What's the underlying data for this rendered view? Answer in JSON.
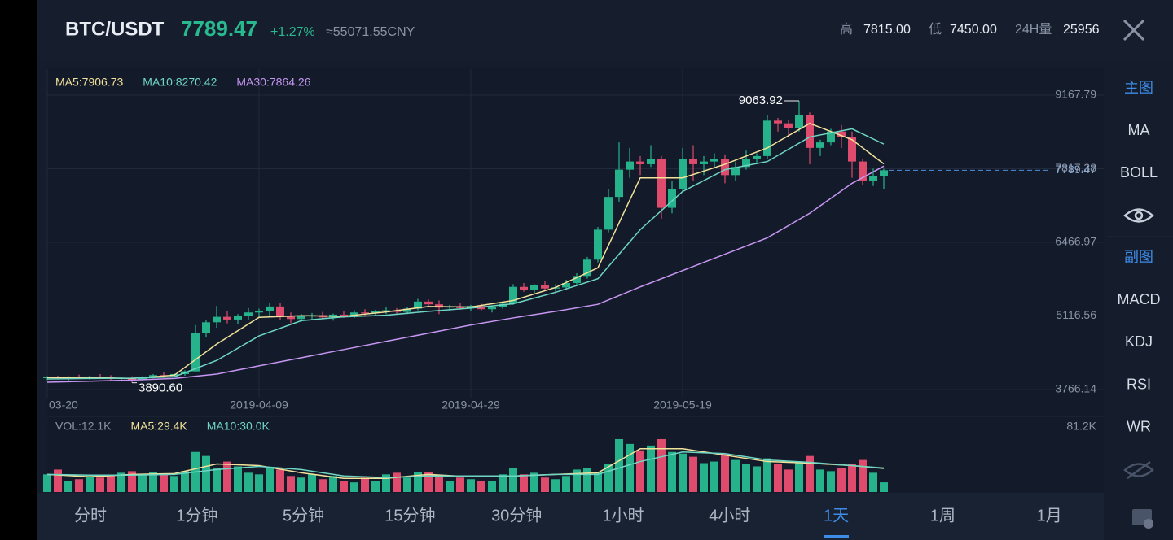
{
  "header": {
    "pair": "BTC/USDT",
    "price": "7789.47",
    "change": "+1.27%",
    "cny": "≈55071.55CNY",
    "high_label": "高",
    "high": "7815.00",
    "low_label": "低",
    "low": "7450.00",
    "vol_label": "24H量",
    "vol": "25956"
  },
  "sidebar": {
    "main_label": "主图",
    "main_items": [
      "MA",
      "BOLL"
    ],
    "sub_label": "副图",
    "sub_items": [
      "MACD",
      "KDJ",
      "RSI",
      "WR"
    ]
  },
  "tabs": {
    "items": [
      "分时",
      "1分钟",
      "5分钟",
      "15分钟",
      "30分钟",
      "1小时",
      "4小时",
      "1天",
      "1周",
      "1月"
    ],
    "active": 7
  },
  "chart_data": {
    "type": "candlestick",
    "up_color": "#26b38c",
    "down_color": "#de4b6d",
    "categories": [
      "03-20",
      null,
      null,
      null,
      null,
      null,
      null,
      null,
      null,
      null,
      null,
      null,
      null,
      null,
      null,
      null,
      null,
      null,
      null,
      null,
      "2019-04-09",
      null,
      null,
      null,
      null,
      null,
      null,
      null,
      null,
      null,
      null,
      null,
      null,
      null,
      null,
      null,
      null,
      null,
      null,
      null,
      "2019-04-29",
      null,
      null,
      null,
      null,
      null,
      null,
      null,
      null,
      null,
      null,
      null,
      null,
      null,
      null,
      null,
      null,
      null,
      null,
      null,
      "2019-05-19",
      null,
      null,
      null,
      null,
      null,
      null,
      null,
      null,
      null,
      null,
      null,
      null,
      null,
      null,
      null,
      null,
      null,
      null,
      null
    ],
    "candles": [
      [
        3980,
        4010,
        3940,
        3990
      ],
      [
        3990,
        4020,
        3950,
        3970
      ],
      [
        3970,
        4010,
        3930,
        4000
      ],
      [
        4000,
        4040,
        3960,
        3985
      ],
      [
        3985,
        4020,
        3950,
        4005
      ],
      [
        4005,
        4050,
        3970,
        3995
      ],
      [
        3995,
        4030,
        3940,
        3960
      ],
      [
        3960,
        4000,
        3920,
        3975
      ],
      [
        3975,
        4010,
        3890.6,
        3945
      ],
      [
        3945,
        4010,
        3930,
        3995
      ],
      [
        3995,
        4050,
        3970,
        4030
      ],
      [
        4030,
        4080,
        4000,
        4010
      ],
      [
        4010,
        4060,
        3990,
        4050
      ],
      [
        4050,
        4120,
        4020,
        4100
      ],
      [
        4100,
        4950,
        4080,
        4800
      ],
      [
        4800,
        5050,
        4720,
        5000
      ],
      [
        5000,
        5300,
        4900,
        5100
      ],
      [
        5100,
        5200,
        4980,
        5050
      ],
      [
        5050,
        5150,
        4960,
        5120
      ],
      [
        5120,
        5260,
        5050,
        5180
      ],
      [
        5180,
        5250,
        5080,
        5200
      ],
      [
        5200,
        5350,
        5100,
        5290
      ],
      [
        5290,
        5350,
        5050,
        5100
      ],
      [
        5100,
        5180,
        4980,
        5060
      ],
      [
        5060,
        5150,
        5010,
        5110
      ],
      [
        5110,
        5170,
        5050,
        5130
      ],
      [
        5130,
        5190,
        5060,
        5090
      ],
      [
        5090,
        5160,
        5030,
        5140
      ],
      [
        5140,
        5200,
        5080,
        5110
      ],
      [
        5110,
        5220,
        5080,
        5180
      ],
      [
        5180,
        5240,
        5120,
        5170
      ],
      [
        5170,
        5230,
        5130,
        5200
      ],
      [
        5200,
        5280,
        5150,
        5220
      ],
      [
        5220,
        5260,
        5160,
        5190
      ],
      [
        5190,
        5280,
        5150,
        5250
      ],
      [
        5250,
        5430,
        5220,
        5380
      ],
      [
        5380,
        5420,
        5280,
        5330
      ],
      [
        5330,
        5400,
        5150,
        5270
      ],
      [
        5270,
        5320,
        5200,
        5290
      ],
      [
        5290,
        5350,
        5230,
        5260
      ],
      [
        5260,
        5320,
        5210,
        5300
      ],
      [
        5300,
        5340,
        5220,
        5240
      ],
      [
        5240,
        5300,
        5180,
        5280
      ],
      [
        5280,
        5380,
        5250,
        5340
      ],
      [
        5340,
        5700,
        5320,
        5650
      ],
      [
        5650,
        5720,
        5560,
        5600
      ],
      [
        5600,
        5700,
        5540,
        5680
      ],
      [
        5680,
        5750,
        5580,
        5620
      ],
      [
        5620,
        5700,
        5560,
        5640
      ],
      [
        5640,
        5780,
        5600,
        5720
      ],
      [
        5720,
        5900,
        5690,
        5850
      ],
      [
        5850,
        6200,
        5800,
        6150
      ],
      [
        6150,
        6750,
        6100,
        6700
      ],
      [
        6700,
        7450,
        6650,
        7300
      ],
      [
        7300,
        8300,
        7200,
        7800
      ],
      [
        7800,
        8200,
        7650,
        7950
      ],
      [
        7950,
        8050,
        7700,
        7900
      ],
      [
        7900,
        8250,
        7850,
        8000
      ],
      [
        8000,
        8050,
        6900,
        7100
      ],
      [
        7100,
        7600,
        7000,
        7450
      ],
      [
        7450,
        8200,
        7400,
        8000
      ],
      [
        8000,
        8250,
        7600,
        7900
      ],
      [
        7900,
        8050,
        7700,
        7950
      ],
      [
        7950,
        8100,
        7850,
        7990
      ],
      [
        7990,
        8080,
        7550,
        7700
      ],
      [
        7700,
        7950,
        7600,
        7850
      ],
      [
        7850,
        8150,
        7800,
        8000
      ],
      [
        8000,
        8100,
        7900,
        8050
      ],
      [
        8050,
        8800,
        8000,
        8700
      ],
      [
        8700,
        8750,
        8500,
        8650
      ],
      [
        8650,
        8720,
        8400,
        8560
      ],
      [
        8560,
        9063.92,
        8500,
        8800
      ],
      [
        8800,
        8850,
        7900,
        8200
      ],
      [
        8200,
        8350,
        8050,
        8300
      ],
      [
        8300,
        8550,
        8250,
        8500
      ],
      [
        8500,
        8620,
        8200,
        8400
      ],
      [
        8400,
        8500,
        7650,
        7950
      ],
      [
        7950,
        8000,
        7520,
        7600
      ],
      [
        7600,
        7820,
        7500,
        7680
      ],
      [
        7680,
        7815,
        7450,
        7789.47
      ]
    ],
    "ylim": [
      3602,
      9645
    ],
    "yticks": [
      3766.14,
      5116.56,
      6466.97,
      7817.38,
      9167.79
    ],
    "last_price_label": "7789.47",
    "high_label": "9063.92",
    "low_label": "3890.60",
    "ma": [
      {
        "name": "MA5:7906.73",
        "color": "#f3e29a",
        "x": [
          0,
          4,
          8,
          12,
          16,
          20,
          24,
          28,
          32,
          36,
          40,
          44,
          48,
          52,
          56,
          60,
          64,
          68,
          72,
          76,
          79
        ],
        "values": [
          3985,
          3985,
          3970,
          4030,
          4600,
          5090,
          5120,
          5110,
          5190,
          5290,
          5280,
          5400,
          5640,
          6000,
          7650,
          7650,
          7900,
          8200,
          8650,
          8350,
          7906.73
        ]
      },
      {
        "name": "MA10:8270.42",
        "color": "#6fd6c4",
        "x": [
          0,
          4,
          8,
          12,
          16,
          20,
          24,
          28,
          32,
          36,
          40,
          44,
          48,
          52,
          56,
          60,
          64,
          68,
          72,
          76,
          79
        ],
        "values": [
          3960,
          3970,
          3975,
          4000,
          4300,
          4750,
          5030,
          5100,
          5130,
          5200,
          5260,
          5340,
          5550,
          5800,
          6700,
          7400,
          7800,
          7950,
          8400,
          8550,
          8270.42
        ]
      },
      {
        "name": "MA30:7864.26",
        "color": "#c796f2",
        "x": [
          0,
          4,
          8,
          12,
          16,
          20,
          24,
          28,
          32,
          36,
          40,
          44,
          48,
          52,
          56,
          60,
          64,
          68,
          72,
          76,
          79
        ],
        "values": [
          3900,
          3920,
          3940,
          3970,
          4050,
          4200,
          4350,
          4500,
          4650,
          4800,
          4950,
          5080,
          5200,
          5330,
          5650,
          5950,
          6250,
          6550,
          7000,
          7550,
          7864.26
        ]
      }
    ],
    "volume": {
      "label": "VOL:12.1K",
      "ylim": [
        0,
        81.2
      ],
      "yticks": [
        {
          "value": 81.2,
          "label": "81.2K"
        }
      ],
      "values": [
        22,
        28,
        14,
        16,
        20,
        18,
        21,
        24,
        26,
        22,
        25,
        22,
        20,
        26,
        50,
        45,
        30,
        38,
        32,
        24,
        22,
        30,
        28,
        20,
        18,
        22,
        16,
        20,
        14,
        12,
        18,
        14,
        22,
        24,
        18,
        25,
        25,
        20,
        14,
        18,
        16,
        14,
        14,
        22,
        30,
        22,
        24,
        18,
        16,
        20,
        28,
        30,
        25,
        35,
        66,
        60,
        52,
        58,
        66,
        50,
        48,
        44,
        36,
        38,
        48,
        40,
        35,
        32,
        42,
        35,
        28,
        38,
        45,
        28,
        26,
        30,
        35,
        40,
        24,
        12.1
      ],
      "ma": [
        {
          "name": "MA5:29.4K",
          "color": "#f3e29a",
          "x": [
            0,
            4,
            8,
            12,
            16,
            20,
            24,
            28,
            32,
            36,
            40,
            44,
            48,
            52,
            56,
            60,
            64,
            68,
            72,
            76,
            79
          ],
          "values": [
            22,
            19,
            22,
            23,
            35,
            33,
            24,
            17,
            17,
            22,
            19,
            20,
            22,
            24,
            54,
            54,
            46,
            38,
            36,
            33,
            29.4
          ]
        },
        {
          "name": "MA10:30.0K",
          "color": "#6fd6c4",
          "x": [
            0,
            4,
            8,
            12,
            16,
            20,
            24,
            28,
            32,
            36,
            40,
            44,
            48,
            52,
            56,
            60,
            64,
            68,
            72,
            76,
            79
          ],
          "values": [
            22,
            21,
            21,
            22,
            28,
            32,
            28,
            20,
            18,
            20,
            20,
            20,
            22,
            22,
            38,
            50,
            48,
            40,
            37,
            33,
            30.0
          ]
        }
      ]
    }
  }
}
